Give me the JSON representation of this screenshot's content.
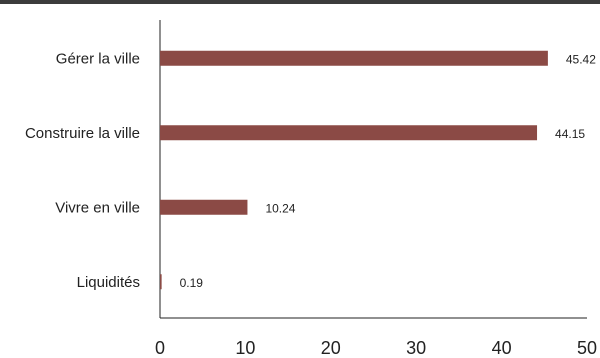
{
  "chart_data": {
    "type": "bar",
    "orientation": "horizontal",
    "categories": [
      "Gérer la ville",
      "Construire la ville",
      "Vivre en ville",
      "Liquidités"
    ],
    "values": [
      45.42,
      44.15,
      10.24,
      0.19
    ],
    "value_labels": [
      "45.42",
      "44.15",
      "10.24",
      "0.19"
    ],
    "xlim": [
      0,
      50
    ],
    "x_ticks": [
      "0",
      "10",
      "20",
      "30",
      "40",
      "50"
    ],
    "grid": false,
    "bar_color": "#8b4a45",
    "title": "",
    "xlabel": "",
    "ylabel": ""
  }
}
